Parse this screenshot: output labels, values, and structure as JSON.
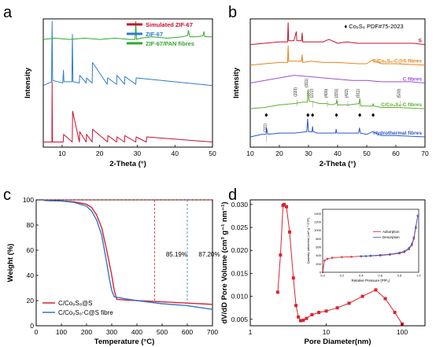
{
  "figure": {
    "panel_letters": [
      "a",
      "b",
      "c",
      "d"
    ]
  },
  "chart_data": [
    {
      "panel": "a",
      "type": "line",
      "xlabel": "2-Theta (°)",
      "ylabel": "Intensity",
      "xlim": [
        5,
        50
      ],
      "xticks": [
        10,
        20,
        30,
        40,
        50
      ],
      "legend_position": "top-right",
      "series": [
        {
          "name": "Simulated ZIF-67",
          "color": "#c8102e",
          "offset": 0.04,
          "x": [
            5,
            7.3,
            7.35,
            7.45,
            10.3,
            10.4,
            12.7,
            12.8,
            14.6,
            14.7,
            16.4,
            16.5,
            18.0,
            18.1,
            22.1,
            22.2,
            24.5,
            24.6,
            26.6,
            26.7,
            29.6,
            29.7,
            32.4,
            32.5,
            50
          ],
          "y": [
            0.0,
            0.0,
            0.47,
            0.0,
            0.0,
            0.06,
            0.0,
            0.24,
            0.0,
            0.08,
            0.0,
            0.06,
            0.0,
            0.1,
            0.0,
            0.05,
            0.0,
            0.04,
            0.0,
            0.05,
            0.0,
            0.04,
            0.0,
            0.04,
            0.0
          ]
        },
        {
          "name": "ZIF-67",
          "color": "#2e7bd1",
          "offset": 0.46,
          "x": [
            5,
            7.2,
            7.35,
            7.5,
            10.2,
            10.35,
            10.5,
            12.6,
            12.75,
            12.9,
            14.6,
            14.7,
            16.4,
            16.5,
            18.0,
            18.1,
            22.0,
            22.1,
            24.5,
            24.6,
            26.6,
            26.7,
            29.6,
            29.7,
            50
          ],
          "y": [
            0.02,
            0.05,
            0.52,
            0.06,
            0.04,
            0.14,
            0.05,
            0.05,
            0.42,
            0.05,
            0.04,
            0.1,
            0.04,
            0.08,
            0.04,
            0.2,
            0.03,
            0.08,
            0.03,
            0.1,
            0.03,
            0.09,
            0.03,
            0.08,
            0.02
          ]
        },
        {
          "name": "ZIF-67/PAN fibres",
          "color": "#2ea82e",
          "offset": 0.84,
          "x": [
            5,
            8,
            12,
            16,
            20,
            24,
            28,
            29.4,
            29.6,
            29.8,
            31,
            34,
            38,
            42,
            43.4,
            43.6,
            44,
            46,
            47.5,
            47.7,
            48,
            50
          ],
          "y": [
            0.0,
            0.01,
            0.0,
            0.01,
            0.0,
            0.01,
            0.0,
            0.0,
            0.14,
            0.0,
            0.01,
            0.02,
            0.01,
            0.02,
            0.03,
            0.07,
            0.02,
            0.02,
            0.03,
            0.06,
            0.02,
            0.02
          ]
        }
      ]
    },
    {
      "panel": "b",
      "type": "line",
      "xlabel": "2-Theta (°)",
      "ylabel": "Intensity",
      "xlim": [
        10,
        70
      ],
      "xticks": [
        10,
        20,
        30,
        40,
        50,
        60,
        70
      ],
      "reference_label": "♦ Co₉S₈  PDF#75-2023",
      "series": [
        {
          "name": "S",
          "color": "#c8102e",
          "offset": 0.8,
          "x": [
            10,
            15,
            20,
            22.8,
            23.0,
            23.2,
            25,
            25.8,
            26,
            27.6,
            27.8,
            28,
            31,
            35,
            37,
            40,
            43,
            47,
            53,
            60,
            66,
            70
          ],
          "y": [
            0.0,
            0.01,
            0.02,
            0.02,
            0.17,
            0.03,
            0.03,
            0.1,
            0.03,
            0.03,
            0.09,
            0.02,
            0.02,
            0.02,
            0.04,
            0.01,
            0.02,
            0.01,
            0.01,
            0.01,
            0.01,
            0.0
          ]
        },
        {
          "name": "C/Co₉S₈-C@S fibres",
          "color": "#e8841a",
          "offset": 0.64,
          "x": [
            10,
            15,
            20,
            22.8,
            23.0,
            23.2,
            25,
            27.6,
            27.8,
            28,
            31,
            35,
            40,
            47,
            50,
            52,
            55,
            60,
            70
          ],
          "y": [
            0.0,
            0.01,
            0.02,
            0.02,
            0.15,
            0.03,
            0.03,
            0.03,
            0.08,
            0.02,
            0.03,
            0.02,
            0.02,
            0.01,
            0.01,
            0.04,
            0.01,
            0.01,
            0.0
          ]
        },
        {
          "name": "C fibres",
          "color": "#9b4fd6",
          "offset": 0.5,
          "x": [
            10,
            15,
            20,
            25,
            30,
            35,
            40,
            45,
            50,
            55,
            60,
            65,
            70
          ],
          "y": [
            0.0,
            0.02,
            0.04,
            0.06,
            0.05,
            0.04,
            0.03,
            0.02,
            0.02,
            0.01,
            0.01,
            0.01,
            0.0
          ]
        },
        {
          "name": "C/Co₉S₈-C fibres",
          "color": "#5fae2e",
          "offset": 0.3,
          "x": [
            10,
            15,
            20,
            25,
            28,
            29.6,
            29.9,
            30.2,
            32,
            34,
            36,
            38,
            39.5,
            39.7,
            40,
            44,
            47.4,
            47.6,
            48,
            52.0,
            52.2,
            52.4,
            55,
            60,
            70
          ],
          "y": [
            0.0,
            0.01,
            0.03,
            0.04,
            0.05,
            0.05,
            0.15,
            0.06,
            0.05,
            0.04,
            0.04,
            0.03,
            0.04,
            0.07,
            0.03,
            0.03,
            0.04,
            0.08,
            0.02,
            0.02,
            0.04,
            0.02,
            0.01,
            0.01,
            0.0
          ]
        },
        {
          "name": "Hydrothermal fibres",
          "color": "#2e56c9",
          "offset": 0.08,
          "x": [
            10,
            14,
            15.4,
            15.6,
            16,
            20,
            25,
            29.4,
            29.7,
            30,
            31.2,
            31.4,
            31.6,
            33,
            36,
            39.3,
            39.5,
            39.7,
            42,
            47.2,
            47.5,
            47.8,
            50,
            52,
            55,
            60,
            70
          ],
          "y": [
            0.0,
            0.02,
            0.02,
            0.07,
            0.02,
            0.03,
            0.03,
            0.04,
            0.14,
            0.04,
            0.04,
            0.08,
            0.04,
            0.03,
            0.03,
            0.03,
            0.06,
            0.03,
            0.03,
            0.03,
            0.07,
            0.03,
            0.02,
            0.04,
            0.01,
            0.01,
            0.0
          ]
        }
      ],
      "annotations": [
        {
          "text": "(111)",
          "x": 15.5,
          "y": 0.15
        },
        {
          "text": "(220)",
          "x": 26,
          "y": 0.43
        },
        {
          "text": "(311)",
          "x": 29.7,
          "y": 0.5
        },
        {
          "text": "(222)",
          "x": 31.5,
          "y": 0.42
        },
        {
          "text": "(400)",
          "x": 36.5,
          "y": 0.42
        },
        {
          "text": "(331)",
          "x": 40,
          "y": 0.42
        },
        {
          "text": "(422)",
          "x": 43.5,
          "y": 0.42
        },
        {
          "text": "(511)",
          "x": 47.5,
          "y": 0.42
        },
        {
          "text": "(533)",
          "x": 61.5,
          "y": 0.42
        }
      ],
      "diamond_markers": [
        15.5,
        29.8,
        31.4,
        39.6,
        47.6,
        52.2
      ]
    },
    {
      "panel": "c",
      "type": "line",
      "xlabel": "Temperature (°C)",
      "ylabel": "Weight (%)",
      "xlim": [
        0,
        700
      ],
      "ylim": [
        0,
        100
      ],
      "xticks": [
        0,
        100,
        200,
        300,
        400,
        500,
        600,
        700
      ],
      "yticks": [
        0,
        20,
        40,
        60,
        80,
        100
      ],
      "legend_position": "bottom-left",
      "series": [
        {
          "name": "C/Co₉S₈@S",
          "color": "#d9232e",
          "x": [
            30,
            100,
            150,
            200,
            220,
            240,
            260,
            280,
            300,
            310,
            320,
            350,
            400,
            500,
            600,
            700
          ],
          "y": [
            99.5,
            99.2,
            98.5,
            96.5,
            94,
            88,
            78,
            60,
            40,
            28,
            21,
            20.5,
            20,
            19,
            18,
            17
          ]
        },
        {
          "name": "C/Co₉S₈-C@S fibre",
          "color": "#2f77c8",
          "x": [
            30,
            100,
            150,
            200,
            220,
            240,
            260,
            280,
            290,
            300,
            310,
            350,
            400,
            500,
            600,
            700
          ],
          "y": [
            99.5,
            99,
            98,
            95,
            91,
            84,
            72,
            50,
            38,
            28,
            23,
            21.5,
            20,
            17.5,
            16,
            13
          ]
        }
      ],
      "reference_line_y": 100,
      "vertical_lines": [
        {
          "x": 470,
          "label": "85.19%",
          "color": "#d9232e"
        },
        {
          "x": 600,
          "label": "87.20%",
          "color": "#2f77c8"
        }
      ]
    },
    {
      "panel": "d",
      "type": "line",
      "xlabel": "Pore Diameter(nm)",
      "ylabel": "dV/dD Pore Volume (cm³ g⁻¹ nm⁻¹)",
      "xscale": "log",
      "xlim": [
        1,
        200
      ],
      "ylim": [
        0.0036,
        0.031
      ],
      "xticks": [
        1,
        10,
        100
      ],
      "yticks": [
        0.005,
        0.01,
        0.015,
        0.02,
        0.025,
        0.03
      ],
      "series": [
        {
          "name": "",
          "color": "#d9232e",
          "x": [
            2.3,
            2.5,
            2.7,
            2.8,
            3.0,
            3.3,
            3.7,
            4.0,
            4.3,
            4.6,
            5.0,
            5.5,
            6.5,
            8,
            10,
            14,
            20,
            30,
            45,
            60,
            80,
            100
          ],
          "y": [
            0.0109,
            0.019,
            0.0298,
            0.03,
            0.0295,
            0.024,
            0.014,
            0.008,
            0.0055,
            0.0047,
            0.0048,
            0.0052,
            0.006,
            0.0065,
            0.0068,
            0.0075,
            0.0085,
            0.01,
            0.0114,
            0.0095,
            0.0065,
            0.004
          ]
        }
      ],
      "inset": {
        "xlabel": "Relative Pressure (P/P₀)",
        "ylabel": "Quantity adsorbed (cm³ g⁻¹ STP)",
        "xlim": [
          0,
          1.0
        ],
        "ylim": [
          0,
          1500
        ],
        "xticks": [
          0.0,
          0.2,
          0.4,
          0.6,
          0.8,
          1.0
        ],
        "yticks": [
          0,
          200,
          400,
          600,
          800,
          1000,
          1200,
          1400
        ],
        "legend_position": "center-right",
        "series": [
          {
            "name": "Adsorption",
            "color": "#d9232e",
            "x": [
              0.0,
              0.02,
              0.05,
              0.1,
              0.2,
              0.3,
              0.4,
              0.5,
              0.6,
              0.7,
              0.8,
              0.85,
              0.9,
              0.93,
              0.95,
              0.97,
              0.99
            ],
            "y": [
              0,
              280,
              320,
              345,
              360,
              370,
              380,
              390,
              400,
              420,
              450,
              480,
              550,
              650,
              800,
              1050,
              1350
            ]
          },
          {
            "name": "Desorption",
            "color": "#2f5fd0",
            "x": [
              0.99,
              0.97,
              0.95,
              0.93,
              0.9,
              0.85,
              0.8,
              0.7,
              0.6,
              0.5,
              0.45,
              0.4
            ],
            "y": [
              1350,
              1080,
              830,
              680,
              580,
              500,
              465,
              430,
              410,
              395,
              385,
              380
            ]
          }
        ]
      }
    }
  ]
}
